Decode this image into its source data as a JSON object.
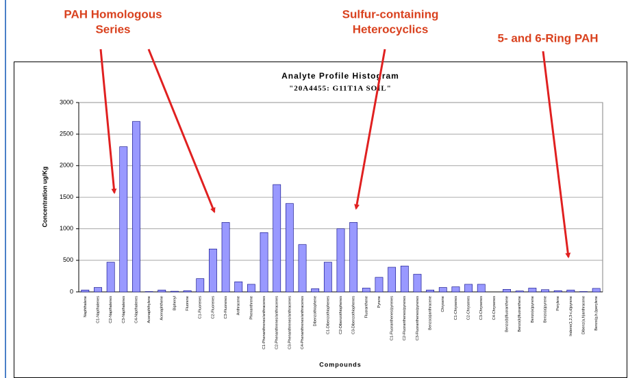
{
  "chart_data": {
    "type": "bar",
    "title": "Analyte Profile Histogram",
    "subtitle": "\"20A4455: G11T1A SOIL\"",
    "x_label": "Compounds",
    "y_label": "Concentration ug/Kg",
    "color": "#9999ff",
    "grid": true,
    "ylim": [
      0,
      3000
    ],
    "yticks": [
      0,
      500,
      1000,
      1500,
      2000,
      2500,
      3000
    ],
    "categories": [
      "Naphthalene",
      "C1-Napthalenes",
      "C2-Napthalenes",
      "C3-Napthalenes",
      "C4-Napthalenes",
      "Acenaphthylene",
      "Acenaphthene",
      "Biphenyl",
      "Fluorene",
      "C1-Fluorenes",
      "C2-Fluorenes",
      "C3-Fluorenes",
      "Anthracene",
      "Phenanthrene",
      "C1-Phenanthrenes/anthracenes",
      "C2-Phenanthrenes/anthracenes",
      "C3-Phenanthrenes/anthracenes",
      "C4-Phenanthrenes/anthracenes",
      "Dibenzothiophene",
      "C1-Dibenzothiophenes",
      "C2-Dibenzothiophenes",
      "C3-Dibenzothiophenes",
      "Fluoranthene",
      "Pyrene",
      "C1-Fluoranthenes/pyrenes",
      "C2-Fluoranthenes/pyrenes",
      "C3-Fluoranthenes/pyrenes",
      "Benzo(a)anthracene",
      "Chrysene",
      "C1-Chrysenes",
      "C2-Chrysenes",
      "C3-Chrysenes",
      "C4-Chrysenes",
      "Benzo(b)fluoranthene",
      "Benzo(k)fluoranthene",
      "Benzo(e)pyrene",
      "Benzo(a)pyrene",
      "Perylene",
      "Indeno(1,2,3-c,d)pyrene",
      "Dibenz(a,h)anthracene",
      "Benzo(g,h,i)perylene"
    ],
    "values": [
      30,
      70,
      470,
      2300,
      2700,
      5,
      30,
      10,
      20,
      210,
      680,
      1100,
      160,
      120,
      940,
      1700,
      1400,
      750,
      50,
      470,
      1000,
      1100,
      60,
      230,
      390,
      410,
      280,
      30,
      70,
      80,
      120,
      120,
      0,
      40,
      15,
      60,
      35,
      20,
      30,
      5,
      55
    ],
    "annotations": [
      {
        "lines": [
          "PAH Homologous",
          "Series"
        ]
      },
      {
        "lines": [
          "Sulfur-containing",
          "Heterocyclics"
        ]
      },
      {
        "lines": [
          "5- and 6-Ring PAH"
        ]
      }
    ]
  }
}
